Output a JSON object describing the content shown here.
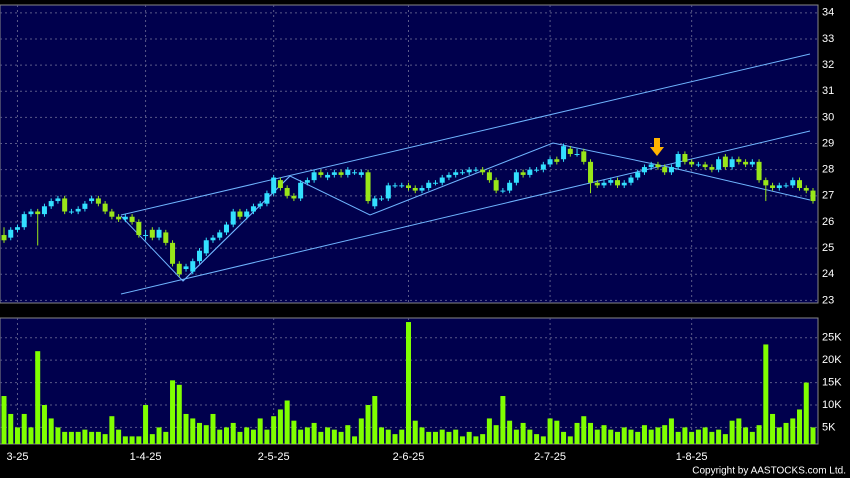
{
  "chart_data": {
    "type": "candlestick",
    "categories": [
      null,
      null,
      "3-25",
      null,
      null,
      null,
      null,
      null,
      null,
      null,
      null,
      null,
      null,
      null,
      null,
      null,
      null,
      null,
      null,
      null,
      null,
      "1-4-25",
      null,
      null,
      null,
      null,
      null,
      null,
      null,
      null,
      null,
      null,
      null,
      null,
      null,
      null,
      null,
      null,
      null,
      null,
      "2-5-25",
      null,
      null,
      null,
      null,
      null,
      null,
      null,
      null,
      null,
      null,
      null,
      null,
      null,
      null,
      null,
      null,
      null,
      null,
      null,
      "2-6-25",
      null,
      null,
      null,
      null,
      null,
      null,
      null,
      null,
      null,
      null,
      null,
      null,
      null,
      null,
      null,
      null,
      null,
      null,
      null,
      null,
      "2-7-25",
      null,
      null,
      null,
      null,
      null,
      null,
      null,
      null,
      null,
      null,
      null,
      null,
      null,
      null,
      null,
      null,
      null,
      null,
      null,
      null,
      "1-8-25",
      null,
      null,
      null,
      null,
      null,
      null,
      null,
      null,
      null,
      null,
      null,
      null,
      null,
      null,
      null,
      null,
      null,
      null
    ],
    "ohlc": [
      [
        25.5,
        25.8,
        25.2,
        25.3
      ],
      [
        25.4,
        25.8,
        25.3,
        25.7
      ],
      [
        25.7,
        25.9,
        25.6,
        25.8
      ],
      [
        25.8,
        26.4,
        25.7,
        26.3
      ],
      [
        26.3,
        26.5,
        26.2,
        26.4
      ],
      [
        26.4,
        26.5,
        25.1,
        26.3
      ],
      [
        26.3,
        26.7,
        26.2,
        26.6
      ],
      [
        26.6,
        26.9,
        26.5,
        26.8
      ],
      [
        26.8,
        27.0,
        26.7,
        26.9
      ],
      [
        26.9,
        27.0,
        26.3,
        26.4
      ],
      [
        26.4,
        26.5,
        26.3,
        26.4
      ],
      [
        26.4,
        26.6,
        26.3,
        26.5
      ],
      [
        26.5,
        26.8,
        26.4,
        26.7
      ],
      [
        26.8,
        27.0,
        26.7,
        26.9
      ],
      [
        26.9,
        27.0,
        26.6,
        26.7
      ],
      [
        26.7,
        26.8,
        26.3,
        26.4
      ],
      [
        26.4,
        26.5,
        26.1,
        26.2
      ],
      [
        26.2,
        26.3,
        26.0,
        26.1
      ],
      [
        26.1,
        26.3,
        26.0,
        26.2
      ],
      [
        26.2,
        26.3,
        25.9,
        26.0
      ],
      [
        26.0,
        26.1,
        25.4,
        25.5
      ],
      [
        25.5,
        25.7,
        25.3,
        25.5
      ],
      [
        25.7,
        25.8,
        25.3,
        25.4
      ],
      [
        25.4,
        25.8,
        25.3,
        25.7
      ],
      [
        25.6,
        25.7,
        25.1,
        25.2
      ],
      [
        25.2,
        25.3,
        24.3,
        24.4
      ],
      [
        24.4,
        24.5,
        23.9,
        24.0
      ],
      [
        24.2,
        24.4,
        24.1,
        24.3
      ],
      [
        24.1,
        24.6,
        24.0,
        24.5
      ],
      [
        24.5,
        25.0,
        24.4,
        24.9
      ],
      [
        24.8,
        25.4,
        24.7,
        25.3
      ],
      [
        25.3,
        25.5,
        25.2,
        25.4
      ],
      [
        25.4,
        25.7,
        25.3,
        25.6
      ],
      [
        25.6,
        26.0,
        25.5,
        25.9
      ],
      [
        25.9,
        26.5,
        25.8,
        26.4
      ],
      [
        26.4,
        26.5,
        26.1,
        26.2
      ],
      [
        26.2,
        26.5,
        26.1,
        26.4
      ],
      [
        26.4,
        26.7,
        26.3,
        26.6
      ],
      [
        26.6,
        26.8,
        26.5,
        26.7
      ],
      [
        26.7,
        27.2,
        26.6,
        27.1
      ],
      [
        27.1,
        27.8,
        27.0,
        27.7
      ],
      [
        27.6,
        27.7,
        27.2,
        27.3
      ],
      [
        27.3,
        27.4,
        26.9,
        27.0
      ],
      [
        27.0,
        27.1,
        26.8,
        26.9
      ],
      [
        26.9,
        27.6,
        26.8,
        27.5
      ],
      [
        27.5,
        27.7,
        27.4,
        27.6
      ],
      [
        27.6,
        28.0,
        27.5,
        27.9
      ],
      [
        27.9,
        28.0,
        27.7,
        27.8
      ],
      [
        27.7,
        27.9,
        27.6,
        27.8
      ],
      [
        27.8,
        28.0,
        27.7,
        27.9
      ],
      [
        27.9,
        28.0,
        27.7,
        27.8
      ],
      [
        27.8,
        28.1,
        27.7,
        28.0
      ],
      [
        27.9,
        28.0,
        27.8,
        27.9
      ],
      [
        27.8,
        28.0,
        27.7,
        27.9
      ],
      [
        27.9,
        28.0,
        26.7,
        26.8
      ],
      [
        26.6,
        27.0,
        26.5,
        26.9
      ],
      [
        26.9,
        27.0,
        26.8,
        26.9
      ],
      [
        26.9,
        27.5,
        26.8,
        27.4
      ],
      [
        27.4,
        27.5,
        27.3,
        27.4
      ],
      [
        27.4,
        27.5,
        27.3,
        27.4
      ],
      [
        27.4,
        27.5,
        27.2,
        27.3
      ],
      [
        27.3,
        27.4,
        27.1,
        27.2
      ],
      [
        27.2,
        27.4,
        27.1,
        27.3
      ],
      [
        27.3,
        27.6,
        27.2,
        27.5
      ],
      [
        27.5,
        27.6,
        27.4,
        27.5
      ],
      [
        27.5,
        27.8,
        27.4,
        27.7
      ],
      [
        27.7,
        27.9,
        27.6,
        27.8
      ],
      [
        27.8,
        28.0,
        27.7,
        27.9
      ],
      [
        27.9,
        28.0,
        27.8,
        27.9
      ],
      [
        27.9,
        28.1,
        27.8,
        28.0
      ],
      [
        28.0,
        28.1,
        27.9,
        28.0
      ],
      [
        28.0,
        28.1,
        27.8,
        27.9
      ],
      [
        27.9,
        28.0,
        27.5,
        27.6
      ],
      [
        27.6,
        27.7,
        27.1,
        27.2
      ],
      [
        27.2,
        27.3,
        27.1,
        27.2
      ],
      [
        27.2,
        27.6,
        27.1,
        27.5
      ],
      [
        27.5,
        28.0,
        27.4,
        27.9
      ],
      [
        27.9,
        28.0,
        27.7,
        27.8
      ],
      [
        27.8,
        28.1,
        27.7,
        28.0
      ],
      [
        28.0,
        28.1,
        27.9,
        28.0
      ],
      [
        28.0,
        28.3,
        27.9,
        28.2
      ],
      [
        28.2,
        28.5,
        28.1,
        28.4
      ],
      [
        28.4,
        28.5,
        28.2,
        28.3
      ],
      [
        28.4,
        29.0,
        28.3,
        28.9
      ],
      [
        28.8,
        28.9,
        28.5,
        28.6
      ],
      [
        28.6,
        28.8,
        28.5,
        28.6
      ],
      [
        28.7,
        28.8,
        28.2,
        28.3
      ],
      [
        28.3,
        28.4,
        27.1,
        27.5
      ],
      [
        27.5,
        27.6,
        27.3,
        27.4
      ],
      [
        27.4,
        27.6,
        27.3,
        27.5
      ],
      [
        27.5,
        27.7,
        27.4,
        27.6
      ],
      [
        27.6,
        27.7,
        27.3,
        27.4
      ],
      [
        27.4,
        27.6,
        27.3,
        27.5
      ],
      [
        27.5,
        27.8,
        27.4,
        27.7
      ],
      [
        27.7,
        28.0,
        27.6,
        27.9
      ],
      [
        27.9,
        28.2,
        27.8,
        28.1
      ],
      [
        28.1,
        28.3,
        28.0,
        28.2
      ],
      [
        28.2,
        28.3,
        28.0,
        28.1
      ],
      [
        28.1,
        28.2,
        27.8,
        27.9
      ],
      [
        27.9,
        28.2,
        27.8,
        28.1
      ],
      [
        28.1,
        28.7,
        28.0,
        28.6
      ],
      [
        28.6,
        28.7,
        28.2,
        28.3
      ],
      [
        28.3,
        28.4,
        28.1,
        28.2
      ],
      [
        28.2,
        28.3,
        28.1,
        28.2
      ],
      [
        28.2,
        28.3,
        28.0,
        28.1
      ],
      [
        28.1,
        28.2,
        27.9,
        28.0
      ],
      [
        28.0,
        28.5,
        27.9,
        28.4
      ],
      [
        28.5,
        28.6,
        28.0,
        28.1
      ],
      [
        28.1,
        28.5,
        28.0,
        28.4
      ],
      [
        28.4,
        28.5,
        28.2,
        28.3
      ],
      [
        28.3,
        28.4,
        28.1,
        28.2
      ],
      [
        28.2,
        28.4,
        28.1,
        28.3
      ],
      [
        28.3,
        28.4,
        27.5,
        27.6
      ],
      [
        27.6,
        27.7,
        26.8,
        27.4
      ],
      [
        27.4,
        27.5,
        27.2,
        27.3
      ],
      [
        27.3,
        27.5,
        27.2,
        27.4
      ],
      [
        27.4,
        27.5,
        27.3,
        27.4
      ],
      [
        27.4,
        27.7,
        27.3,
        27.6
      ],
      [
        27.6,
        27.7,
        27.2,
        27.3
      ],
      [
        27.3,
        27.4,
        27.1,
        27.2
      ],
      [
        27.2,
        27.3,
        26.7,
        26.8
      ]
    ],
    "volume": [
      12000,
      8000,
      5000,
      8000,
      5000,
      22000,
      10000,
      7000,
      5000,
      4000,
      4000,
      4000,
      4500,
      4000,
      4000,
      3500,
      7500,
      4500,
      3000,
      3000,
      3000,
      10000,
      3500,
      5000,
      4000,
      15500,
      14500,
      8000,
      7000,
      6000,
      5500,
      8000,
      4500,
      5000,
      6000,
      4000,
      5000,
      4500,
      7000,
      4500,
      7500,
      9000,
      11000,
      6500,
      4500,
      5000,
      6000,
      4000,
      5000,
      4500,
      4000,
      5500,
      3000,
      7000,
      10000,
      12000,
      5000,
      4500,
      3500,
      4500,
      28500,
      6500,
      5000,
      4000,
      4000,
      4500,
      4000,
      4500,
      3000,
      4000,
      3000,
      3500,
      7000,
      5500,
      12000,
      6500,
      4500,
      6000,
      4500,
      3500,
      3000,
      7000,
      6500,
      4000,
      3000,
      6000,
      7500,
      6000,
      4500,
      5500,
      4500,
      4000,
      5000,
      4500,
      4000,
      5500,
      4500,
      5000,
      5500,
      7000,
      4000,
      5000,
      4000,
      4500,
      5000,
      4000,
      4500,
      3500,
      6500,
      7000,
      5000,
      4000,
      5500,
      23500,
      8000,
      5000,
      6000,
      7000,
      9000,
      15000,
      5000
    ],
    "up_color": "#33e0ff",
    "down_color": "#99e619",
    "volume_color": "#80ff00",
    "ylim": [
      22.9,
      34.3
    ],
    "yticks": [
      23,
      24,
      25,
      26,
      27,
      28,
      29,
      30,
      31,
      32,
      33,
      34
    ],
    "volume_ylim": [
      1300,
      29400
    ],
    "volume_yticks": [
      {
        "value": 5000,
        "label": "5K"
      },
      {
        "value": 10000,
        "label": "10K"
      },
      {
        "value": 15000,
        "label": "15K"
      },
      {
        "value": 20000,
        "label": "20K"
      },
      {
        "value": 25000,
        "label": "25K"
      }
    ],
    "grid": true,
    "copyright": "Copyright by AASTOCKS.com Ltd."
  }
}
